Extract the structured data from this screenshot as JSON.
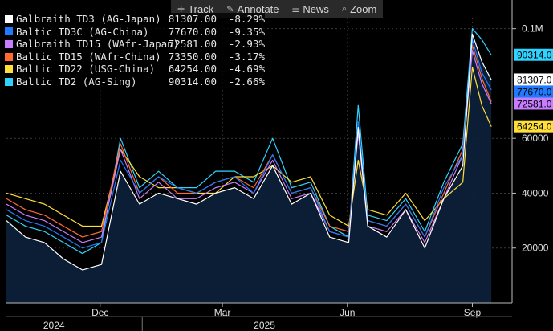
{
  "toolbar": {
    "track": "Track",
    "annotate": "Annotate",
    "news": "News",
    "zoom": "Zoom"
  },
  "legend": [
    {
      "name": "Galbraith TD3 (AG-Japan)",
      "value": "81307.00",
      "change": "-8.29%",
      "color": "#ffffff"
    },
    {
      "name": "Baltic TD3C (AG-China)",
      "value": "77670.00",
      "change": "-9.35%",
      "color": "#1e7bff"
    },
    {
      "name": "Galbraith TD15 (WAfr-Japan)",
      "value": "72581.00",
      "change": "-2.93%",
      "color": "#c77dff"
    },
    {
      "name": "Baltic TD15 (WAfr-China)",
      "value": "73350.00",
      "change": "-3.17%",
      "color": "#ff6a33"
    },
    {
      "name": "Baltic TD22 (USG-China)",
      "value": "64254.00",
      "change": "-4.69%",
      "color": "#ffe03a"
    },
    {
      "name": "Baltic TD2 (AG-Sing)",
      "value": "90314.00",
      "change": "-2.66%",
      "color": "#2ed3ff"
    }
  ],
  "chart_data": {
    "type": "line",
    "x": [
      "2024-09-23",
      "2024-10-07",
      "2024-10-21",
      "2024-11-04",
      "2024-11-18",
      "2024-12-02",
      "2024-12-16",
      "2024-12-30",
      "2025-01-13",
      "2025-01-27",
      "2025-02-10",
      "2025-02-24",
      "2025-03-10",
      "2025-03-24",
      "2025-04-07",
      "2025-04-21",
      "2025-05-05",
      "2025-05-19",
      "2025-06-02",
      "2025-06-09",
      "2025-06-16",
      "2025-06-30",
      "2025-07-14",
      "2025-07-28",
      "2025-08-11",
      "2025-08-25",
      "2025-09-01",
      "2025-09-08",
      "2025-09-15"
    ],
    "series": [
      {
        "name": "Galbraith TD3 (AG-Japan)",
        "color": "#ffffff",
        "values": [
          30000,
          24000,
          22000,
          16000,
          12000,
          14000,
          48000,
          36000,
          40000,
          38000,
          36000,
          40000,
          42000,
          38000,
          50000,
          36000,
          40000,
          24000,
          22000,
          64000,
          28000,
          24000,
          34000,
          20000,
          38000,
          50000,
          98000,
          88000,
          81307
        ]
      },
      {
        "name": "Baltic TD3C (AG-China)",
        "color": "#1e7bff",
        "values": [
          34000,
          30000,
          28000,
          24000,
          20000,
          22000,
          52000,
          40000,
          46000,
          42000,
          40000,
          44000,
          46000,
          40000,
          54000,
          40000,
          42000,
          26000,
          24000,
          66000,
          30000,
          28000,
          36000,
          24000,
          42000,
          54000,
          96000,
          84000,
          77670
        ]
      },
      {
        "name": "Galbraith TD15 (WAfr-Japan)",
        "color": "#c77dff",
        "values": [
          36000,
          32000,
          30000,
          26000,
          22000,
          24000,
          56000,
          38000,
          44000,
          38000,
          38000,
          42000,
          44000,
          40000,
          52000,
          38000,
          40000,
          26000,
          24000,
          62000,
          28000,
          26000,
          34000,
          22000,
          38000,
          54000,
          92000,
          80000,
          72581
        ]
      },
      {
        "name": "Baltic TD15 (WAfr-China)",
        "color": "#ff6a33",
        "values": [
          38000,
          34000,
          32000,
          28000,
          24000,
          26000,
          58000,
          40000,
          46000,
          40000,
          40000,
          44000,
          46000,
          42000,
          54000,
          40000,
          42000,
          28000,
          26000,
          64000,
          30000,
          28000,
          36000,
          24000,
          40000,
          56000,
          94000,
          82000,
          73350
        ]
      },
      {
        "name": "Baltic TD22 (USG-China)",
        "color": "#ffe03a",
        "values": [
          40000,
          38000,
          36000,
          32000,
          28000,
          28000,
          56000,
          46000,
          42000,
          42000,
          40000,
          40000,
          46000,
          46000,
          50000,
          44000,
          46000,
          32000,
          28000,
          52000,
          34000,
          32000,
          40000,
          30000,
          38000,
          44000,
          86000,
          72000,
          64254
        ]
      },
      {
        "name": "Baltic TD2 (AG-Sing)",
        "color": "#2ed3ff",
        "values": [
          32000,
          28000,
          26000,
          22000,
          18000,
          22000,
          60000,
          42000,
          48000,
          42000,
          42000,
          48000,
          48000,
          44000,
          60000,
          42000,
          44000,
          28000,
          24000,
          72000,
          32000,
          30000,
          38000,
          26000,
          44000,
          58000,
          100000,
          96000,
          90314
        ]
      }
    ],
    "ylim": [
      0,
      104000
    ],
    "yticks": [
      20000,
      40000,
      60000,
      100000
    ],
    "ytick_labels": [
      "20000",
      "40000",
      "60000",
      "0.1M"
    ],
    "xticks": [
      {
        "date": "2024-12-01",
        "label": "Dec"
      },
      {
        "date": "2025-03-01",
        "label": "Mar"
      },
      {
        "date": "2025-06-01",
        "label": "Jun"
      },
      {
        "date": "2025-09-01",
        "label": "Sep"
      }
    ],
    "year_labels": [
      {
        "date": "2024-10-28",
        "label": "2024"
      },
      {
        "date": "2025-04-01",
        "label": "2025"
      }
    ],
    "year_divider": "2025-01-01",
    "last_value_tags": [
      {
        "value": 90314,
        "label": "90314.0",
        "color": "#2ed3ff"
      },
      {
        "value": 81307,
        "label": "81307.0",
        "color": "#ffffff"
      },
      {
        "value": 77670,
        "label": "77670.0",
        "color": "#1e7bff"
      },
      {
        "value": 72581,
        "label": "72581.0",
        "color": "#c77dff"
      },
      {
        "value": 64254,
        "label": "64254.0",
        "color": "#ffe03a"
      }
    ],
    "grid": true,
    "legend_position": "top-left"
  }
}
